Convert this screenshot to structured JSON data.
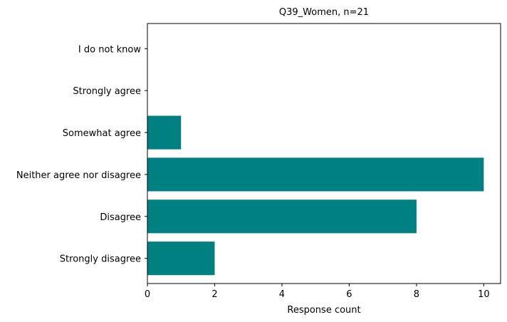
{
  "chart_data": {
    "type": "bar",
    "orientation": "horizontal",
    "title": "Q39_Women, n=21",
    "xlabel": "Response count",
    "ylabel": "",
    "categories": [
      "Strongly disagree",
      "Disagree",
      "Neither agree nor disagree",
      "Somewhat agree",
      "Strongly agree",
      "I do not know"
    ],
    "values": [
      2,
      8,
      10,
      1,
      0,
      0
    ],
    "xlim": [
      0,
      10.5
    ],
    "xticks": [
      0,
      2,
      4,
      6,
      8,
      10
    ],
    "grid": false,
    "bar_color": "#008080"
  }
}
